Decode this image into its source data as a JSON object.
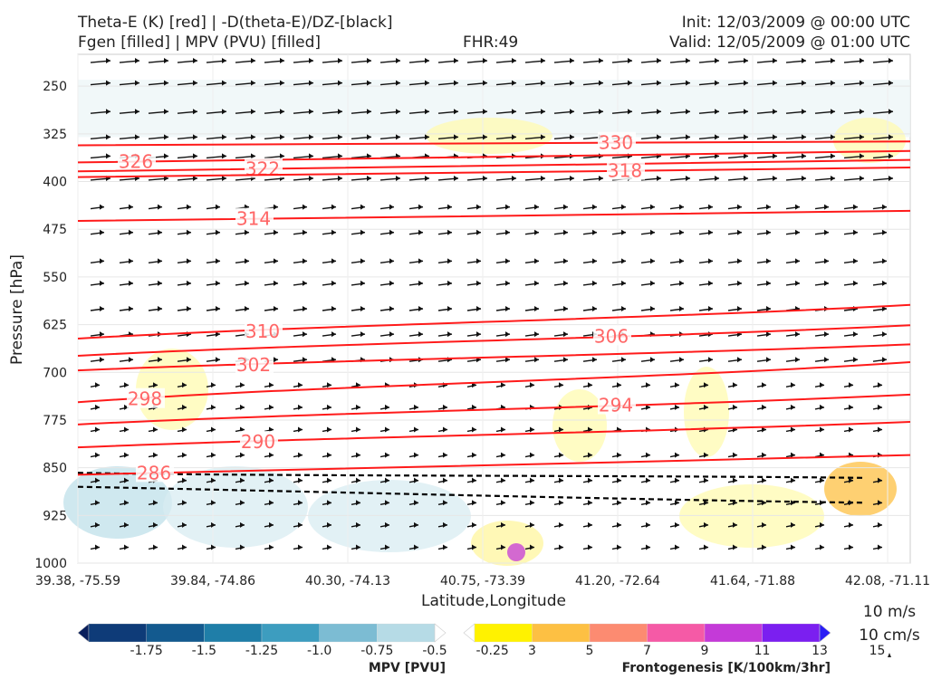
{
  "header": {
    "title_line1": "Theta-E (K) [red] | -D(theta-E)/DZ-[black]",
    "title_line2": "Fgen [filled] | MPV (PVU) [filled]",
    "fhr": "FHR:49",
    "init": "Init: 12/03/2009 @ 00:00 UTC",
    "valid": "Valid: 12/05/2009 @ 01:00 UTC"
  },
  "chart_data": {
    "type": "cross-section",
    "ylabel": "Pressure [hPa]",
    "xlabel": "Latitude,Longitude",
    "y_ticks": [
      250,
      325,
      400,
      475,
      550,
      625,
      700,
      775,
      850,
      925,
      1000
    ],
    "ylim": [
      200,
      1000
    ],
    "y_inverted": true,
    "x_ticks": [
      "39.38, -75.59",
      "39.84, -74.86",
      "40.30, -74.13",
      "40.75, -73.39",
      "41.20, -72.64",
      "41.64, -71.88",
      "42.08, -71.11"
    ],
    "grid": true,
    "theta_e_contours": [
      {
        "label": "330",
        "p_left": 343,
        "p_right": 337
      },
      {
        "label": "326",
        "p_left": 370,
        "p_right": 352
      },
      {
        "label": "322",
        "p_left": 384,
        "p_right": 366
      },
      {
        "label": "318",
        "p_left": 393,
        "p_right": 378
      },
      {
        "label": "314",
        "p_left": 462,
        "p_right": 446
      },
      {
        "label": "310",
        "p_left": 647,
        "p_right": 594
      },
      {
        "label": "306",
        "p_left": 674,
        "p_right": 626
      },
      {
        "label": "302",
        "p_left": 697,
        "p_right": 656
      },
      {
        "label": "298",
        "p_left": 747,
        "p_right": 684
      },
      {
        "label": "294",
        "p_left": 782,
        "p_right": 735
      },
      {
        "label": "290",
        "p_left": 818,
        "p_right": 778
      },
      {
        "label": "286",
        "p_left": 861,
        "p_right": 830
      }
    ],
    "colorbar_mpv": {
      "title": "MPV [PVU]",
      "ticks": [
        "-1.75",
        "-1.5",
        "-1.25",
        "-1.0",
        "-0.75",
        "-0.5",
        "-0.25"
      ],
      "colors": [
        "#0a1f5c",
        "#0e3b78",
        "#135a8f",
        "#1f7ea8",
        "#3d9dbf",
        "#7cbcd3",
        "#b6dbe6",
        "#ffffff"
      ]
    },
    "colorbar_fgen": {
      "title": "Frontogenesis [K/100km/3hr]",
      "ticks": [
        "3",
        "5",
        "7",
        "9",
        "11",
        "13",
        "15"
      ],
      "colors": [
        "#ffffff",
        "#fff200",
        "#fdc043",
        "#fc8b71",
        "#f55aa6",
        "#c43ad8",
        "#7b1ff0",
        "#2a1df5"
      ]
    },
    "wind_key": {
      "horizontal": "10 m/s",
      "vertical": "10 cm/s"
    }
  }
}
